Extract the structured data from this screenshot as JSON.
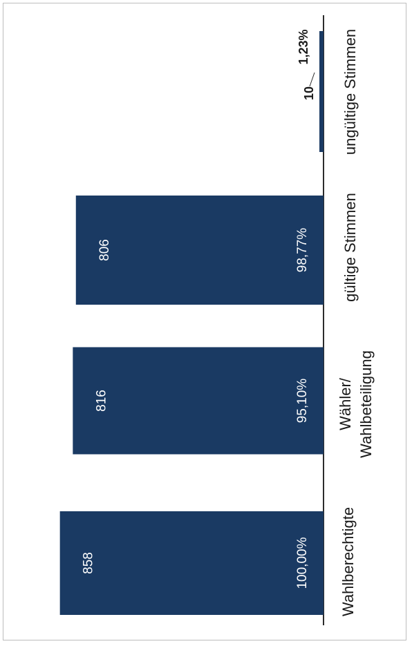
{
  "colors": {
    "bar": "#1a3a63",
    "axis": "#2b2b2b",
    "label_on_bar": "#ffffff",
    "text": "#1a1a1a"
  },
  "chart_data": {
    "type": "bar",
    "orientation": "rotated-90-ccw",
    "title": "",
    "xlabel": "",
    "ylabel": "",
    "categories": [
      "Wahlberechtigte",
      "Wähler/\nWahlbeteiligung",
      "gültige Stimmen",
      "ungültige Stimmen"
    ],
    "values": [
      858,
      816,
      806,
      10
    ],
    "value_labels": [
      "858",
      "816",
      "806",
      "10"
    ],
    "percent_labels": [
      "100,00%",
      "95,10%",
      "98,77%",
      "1,23%"
    ],
    "ylim": [
      0,
      900
    ],
    "grid": false,
    "legend": "none"
  }
}
